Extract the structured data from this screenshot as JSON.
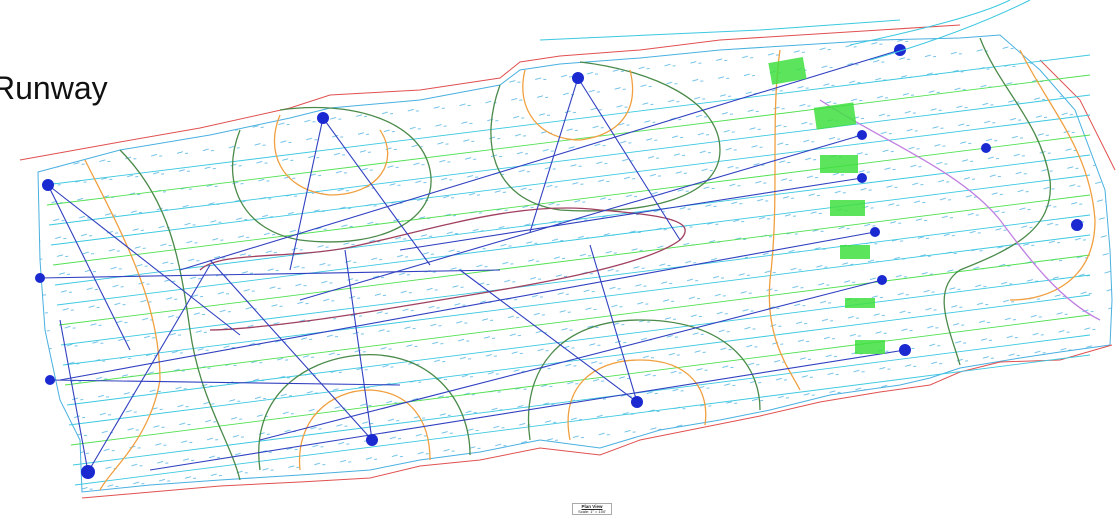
{
  "header": {
    "title": "Runway"
  },
  "caption": {
    "title": "Plan View",
    "scale": "Scale: 1\" = 100'"
  }
}
